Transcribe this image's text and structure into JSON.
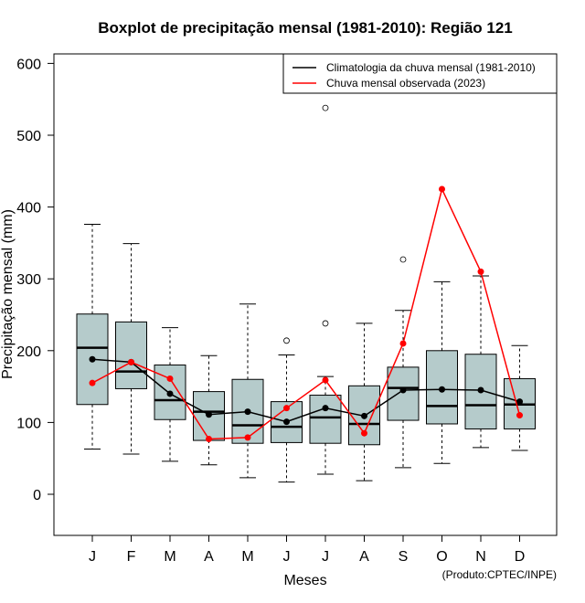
{
  "chart_data": {
    "type": "boxplot",
    "title": "Boxplot de precipitação mensal (1981-2010): Região 121",
    "xlabel": "Meses",
    "ylabel": "Precipitação mensal (mm)",
    "ylim": [
      -60,
      615
    ],
    "yticks": [
      0,
      100,
      200,
      300,
      400,
      500,
      600
    ],
    "categories": [
      "J",
      "F",
      "M",
      "A",
      "M",
      "J",
      "J",
      "A",
      "S",
      "O",
      "N",
      "D"
    ],
    "boxes": [
      {
        "whisker_low": 63,
        "q1": 125,
        "median": 204,
        "q3": 251,
        "whisker_high": 376,
        "outliers": []
      },
      {
        "whisker_low": 56,
        "q1": 147,
        "median": 171,
        "q3": 240,
        "whisker_high": 349,
        "outliers": []
      },
      {
        "whisker_low": 46,
        "q1": 104,
        "median": 131,
        "q3": 180,
        "whisker_high": 232,
        "outliers": []
      },
      {
        "whisker_low": 41,
        "q1": 75,
        "median": 115,
        "q3": 143,
        "whisker_high": 193,
        "outliers": []
      },
      {
        "whisker_low": 23,
        "q1": 71,
        "median": 96,
        "q3": 160,
        "whisker_high": 265,
        "outliers": []
      },
      {
        "whisker_low": 17,
        "q1": 72,
        "median": 94,
        "q3": 129,
        "whisker_high": 194,
        "outliers": [
          214
        ]
      },
      {
        "whisker_low": 28,
        "q1": 71,
        "median": 107,
        "q3": 138,
        "whisker_high": 164,
        "outliers": [
          238,
          538
        ]
      },
      {
        "whisker_low": 19,
        "q1": 69,
        "median": 98,
        "q3": 151,
        "whisker_high": 238,
        "outliers": []
      },
      {
        "whisker_low": 37,
        "q1": 103,
        "median": 148,
        "q3": 177,
        "whisker_high": 256,
        "outliers": [
          327
        ]
      },
      {
        "whisker_low": 43,
        "q1": 98,
        "median": 123,
        "q3": 200,
        "whisker_high": 296,
        "outliers": []
      },
      {
        "whisker_low": 65,
        "q1": 91,
        "median": 124,
        "q3": 195,
        "whisker_high": 304,
        "outliers": []
      },
      {
        "whisker_low": 61,
        "q1": 91,
        "median": 125,
        "q3": 161,
        "whisker_high": 207,
        "outliers": []
      }
    ],
    "series": [
      {
        "name": "Climatologia da chuva mensal (1981-2010)",
        "color": "#000000",
        "values": [
          188,
          184,
          140,
          111,
          115,
          101,
          120,
          109,
          145,
          146,
          145,
          129
        ]
      },
      {
        "name": "Chuva mensal observada (2023)",
        "color": "#ff0000",
        "values": [
          155,
          184,
          161,
          77,
          79,
          120,
          159,
          85,
          210,
          425,
          310,
          110
        ]
      }
    ],
    "legend_position": "top-right",
    "box_fill": "#b5cbcb",
    "credit": "(Produto:CPTEC/INPE)"
  }
}
